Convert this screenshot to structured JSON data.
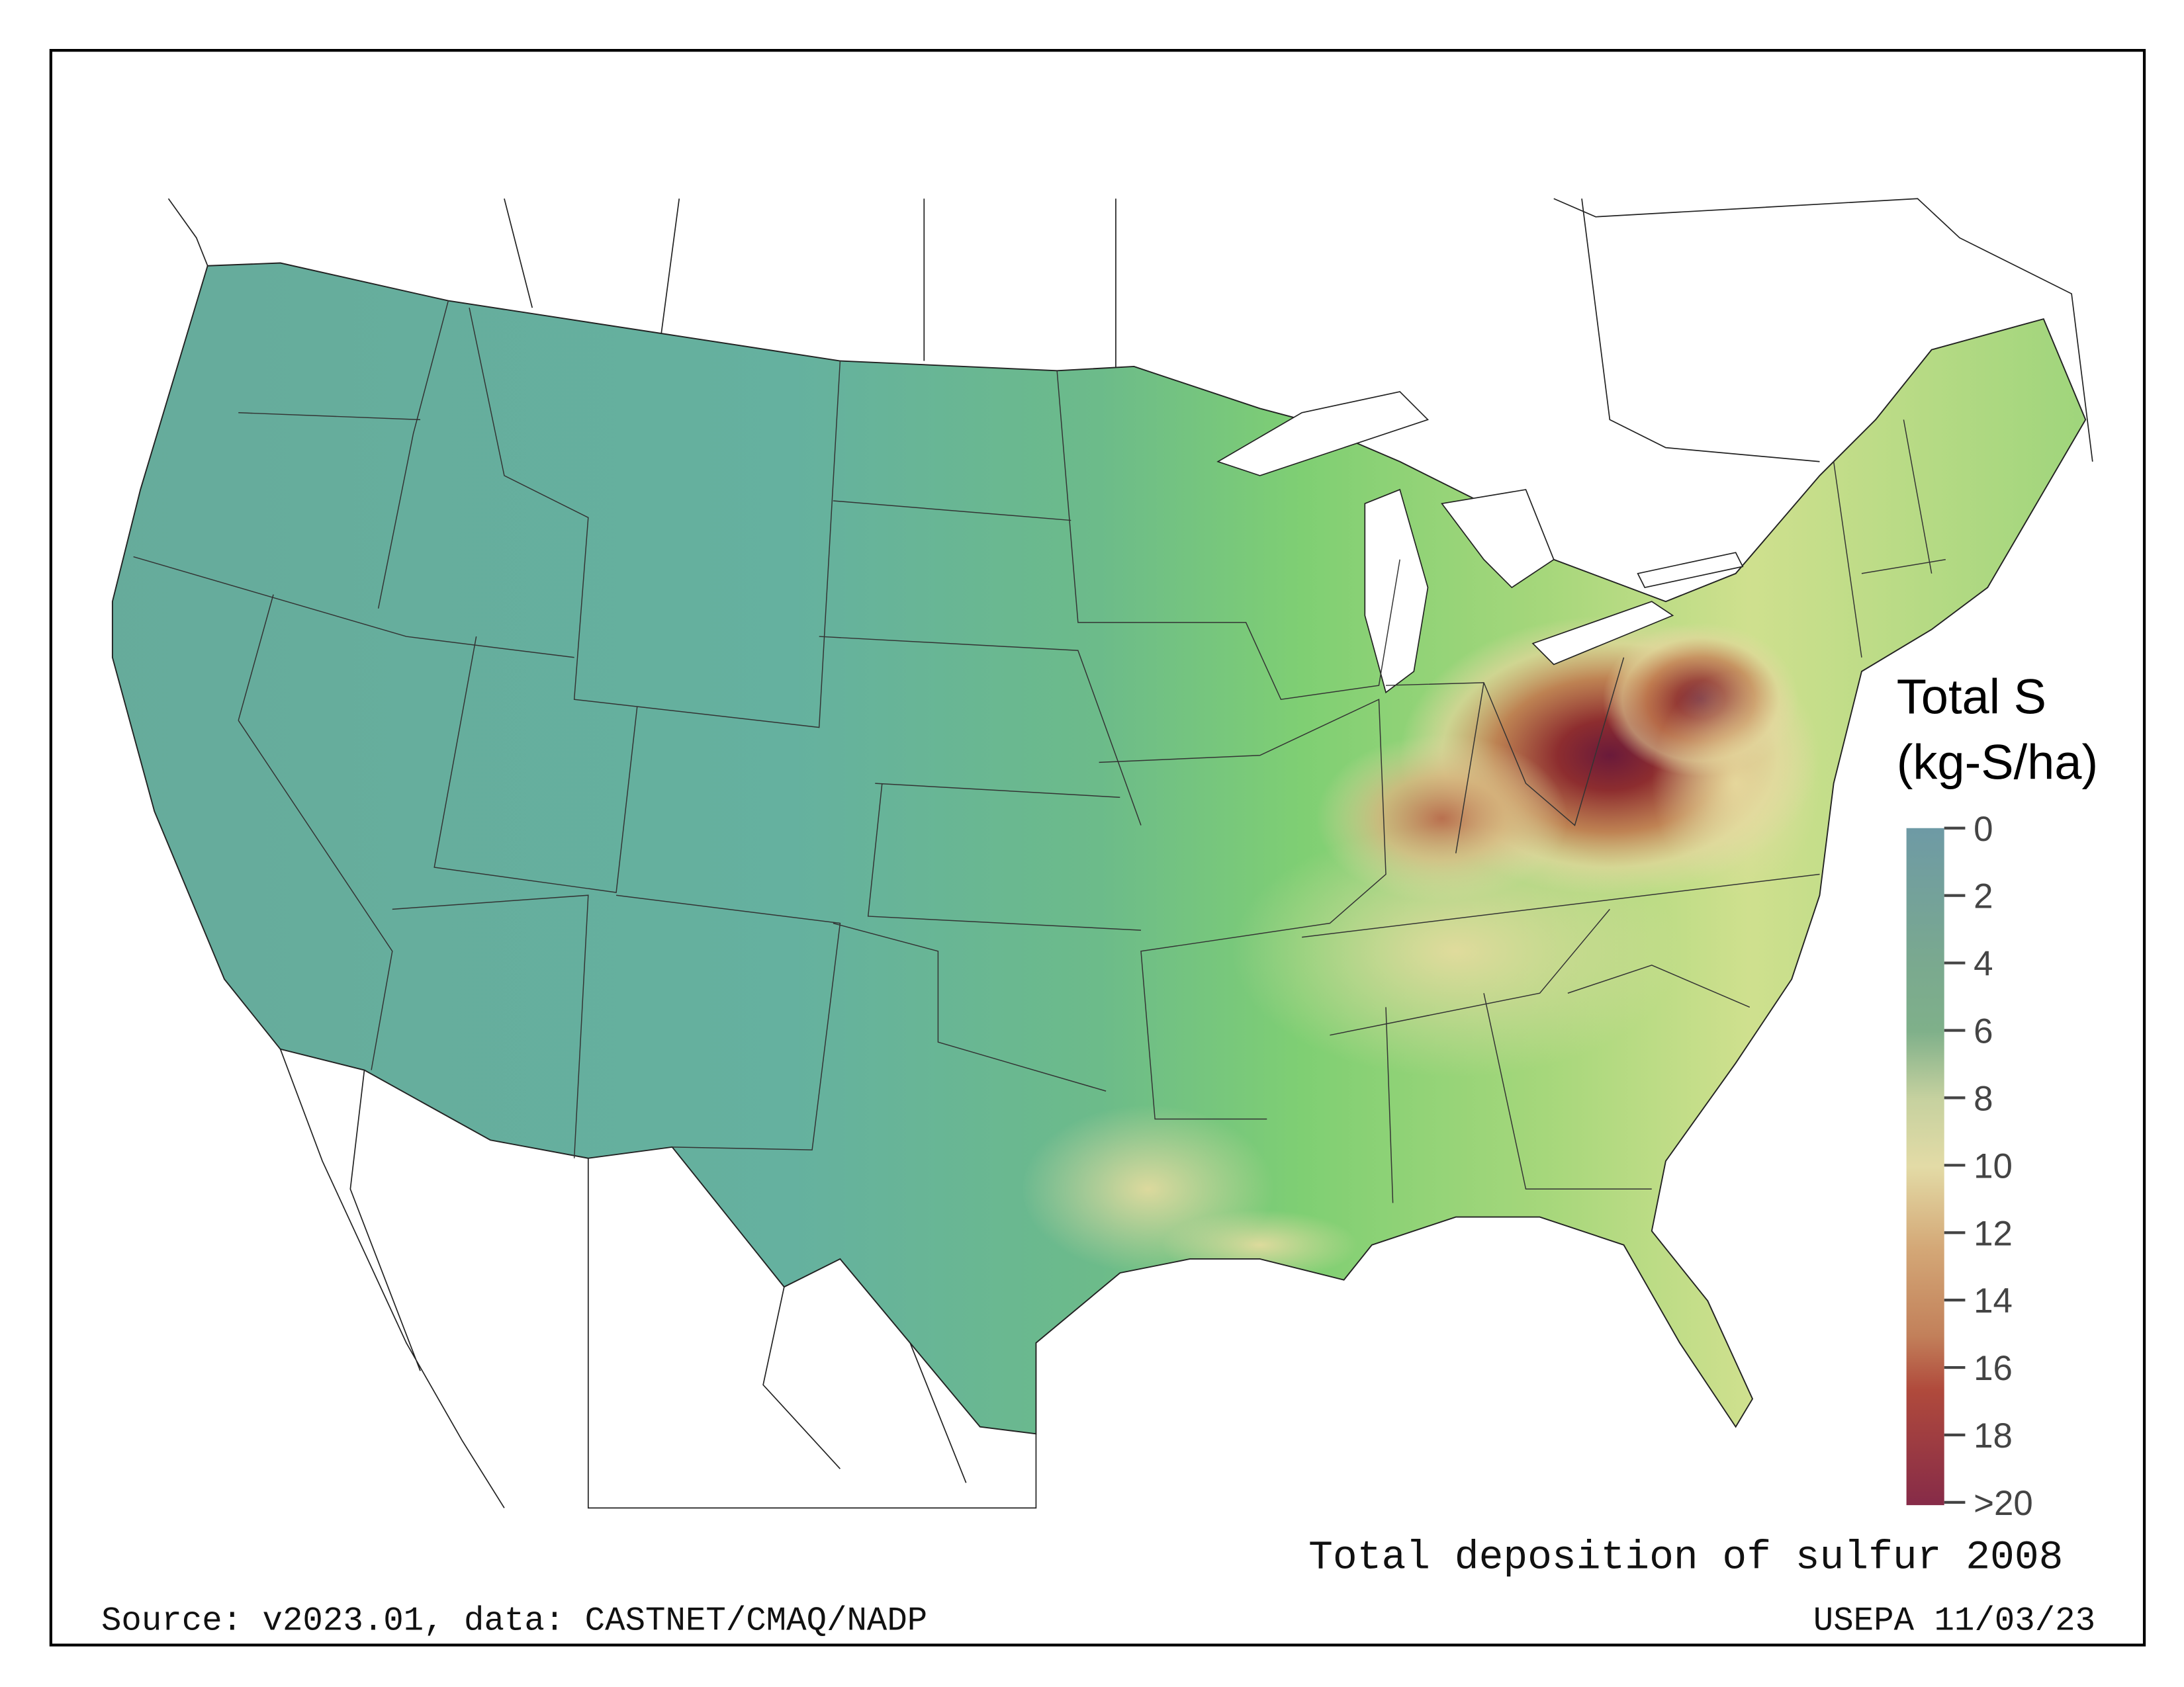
{
  "map": {
    "title": "Total deposition of sulfur 2008",
    "source": "Source: v2023.01, data: CASTNET/CMAQ/NADP",
    "credit": "USEPA 11/03/23"
  },
  "legend": {
    "title_line1": "Total S",
    "title_line2": "(kg-S/ha)",
    "ticks": [
      "0",
      "2",
      "4",
      "6",
      "8",
      "10",
      "12",
      "14",
      "16",
      "18",
      ">20"
    ],
    "colors": [
      "#6e9aa5",
      "#6fa09c",
      "#78ab8f",
      "#7db08a",
      "#aec797",
      "#c9d29f",
      "#e3dba6",
      "#d8b57f",
      "#c4875e",
      "#b0513e",
      "#9e3a44",
      "#862b48"
    ]
  }
}
